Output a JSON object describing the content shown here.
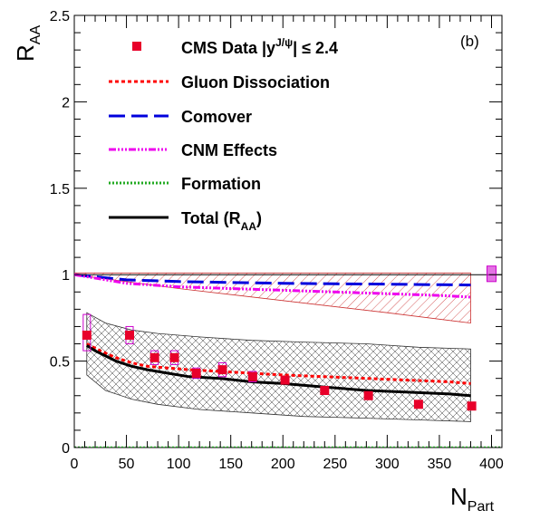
{
  "colors": {
    "data": "#e8002a",
    "gluon": "#ff0000",
    "comover": "#0000dd",
    "cnm": "#ee00ee",
    "formation": "#22aa22",
    "total": "#000000",
    "syst_box": "#cc00cc",
    "band_red": "#cc3333",
    "band_black": "#333333"
  },
  "panel_label": "(b)",
  "axes": {
    "ylabel_main": "R",
    "ylabel_sub": "AA",
    "xlabel_main": "N",
    "xlabel_sub": "Part"
  },
  "legend": {
    "data_prefix": "CMS Data |y",
    "data_sup": "J/ψ",
    "data_suffix": "| ≤ 2.4",
    "gluon": "Gluon Dissociation",
    "comover": "Comover",
    "cnm": "CNM Effects",
    "formation": "Formation",
    "total_prefix": "Total (R",
    "total_sub": "AA",
    "total_suffix": ")"
  },
  "chart_data": {
    "type": "scatter",
    "xlim": [
      0,
      410
    ],
    "ylim": [
      0,
      2.5
    ],
    "x_ticks": [
      0,
      50,
      100,
      150,
      200,
      250,
      300,
      350,
      400
    ],
    "y_ticks": [
      0,
      0.5,
      1,
      1.5,
      2,
      2.5
    ],
    "x_tick_labels": [
      "0",
      "50",
      "100",
      "150",
      "200",
      "250",
      "300",
      "350",
      "400"
    ],
    "y_tick_labels": [
      "0",
      "0.5",
      "1",
      "1.5",
      "2",
      "2.5"
    ],
    "reference_line": 1,
    "data_points": [
      {
        "x": 12,
        "y": 0.65,
        "box_lo": 0.56,
        "box_hi": 0.77
      },
      {
        "x": 53,
        "y": 0.65,
        "box_lo": 0.6,
        "box_hi": 0.7
      },
      {
        "x": 77,
        "y": 0.52,
        "box_lo": 0.48,
        "box_hi": 0.56
      },
      {
        "x": 96,
        "y": 0.52,
        "box_lo": 0.48,
        "box_hi": 0.56
      },
      {
        "x": 117,
        "y": 0.43,
        "box_lo": 0.4,
        "box_hi": 0.46
      },
      {
        "x": 142,
        "y": 0.45,
        "box_lo": 0.41,
        "box_hi": 0.49
      },
      {
        "x": 171,
        "y": 0.41,
        "box_lo": 0.38,
        "box_hi": 0.44
      },
      {
        "x": 202,
        "y": 0.39,
        "box_lo": 0.37,
        "box_hi": 0.41
      },
      {
        "x": 240,
        "y": 0.33,
        "box_lo": 0.31,
        "box_hi": 0.35
      },
      {
        "x": 282,
        "y": 0.3,
        "box_lo": 0.28,
        "box_hi": 0.32
      },
      {
        "x": 330,
        "y": 0.25,
        "box_lo": 0.23,
        "box_hi": 0.26
      },
      {
        "x": 381,
        "y": 0.24,
        "box_lo": 0.22,
        "box_hi": 0.25
      }
    ],
    "global_box": {
      "x": 400,
      "lo": 0.96,
      "hi": 1.05
    },
    "series": [
      {
        "name": "Gluon Dissociation",
        "style": "gluon",
        "x": [
          12,
          25,
          40,
          55,
          70,
          90,
          110,
          140,
          170,
          200,
          240,
          280,
          320,
          360,
          380
        ],
        "y": [
          0.6,
          0.56,
          0.52,
          0.49,
          0.47,
          0.46,
          0.45,
          0.44,
          0.43,
          0.42,
          0.41,
          0.4,
          0.39,
          0.38,
          0.37
        ]
      },
      {
        "name": "Comover",
        "style": "comover",
        "x": [
          0,
          50,
          100,
          150,
          200,
          250,
          300,
          350,
          380
        ],
        "y": [
          1.0,
          0.97,
          0.96,
          0.955,
          0.95,
          0.947,
          0.945,
          0.942,
          0.94
        ]
      },
      {
        "name": "CNM Effects",
        "style": "cnm",
        "x": [
          0,
          50,
          100,
          150,
          200,
          250,
          300,
          350,
          380
        ],
        "y": [
          1.0,
          0.95,
          0.93,
          0.92,
          0.91,
          0.9,
          0.89,
          0.88,
          0.87
        ]
      },
      {
        "name": "Formation",
        "style": "formation",
        "x": [
          0,
          100,
          200,
          300,
          400,
          410
        ],
        "y": [
          0,
          0,
          0,
          0,
          0,
          0
        ]
      },
      {
        "name": "Total (RAA)",
        "style": "total",
        "x": [
          12,
          20,
          30,
          40,
          55,
          70,
          90,
          110,
          140,
          170,
          200,
          240,
          280,
          320,
          360,
          380
        ],
        "y": [
          0.59,
          0.56,
          0.53,
          0.5,
          0.47,
          0.45,
          0.43,
          0.41,
          0.4,
          0.38,
          0.37,
          0.35,
          0.33,
          0.32,
          0.31,
          0.3
        ]
      }
    ],
    "bands": [
      {
        "style": "band_red",
        "x": [
          0,
          100,
          200,
          300,
          380
        ],
        "lo": [
          1.0,
          0.92,
          0.85,
          0.78,
          0.72
        ],
        "hi": [
          1.01,
          1.01,
          1.01,
          1.01,
          1.01
        ]
      },
      {
        "style": "band_black",
        "x": [
          12,
          30,
          55,
          80,
          120,
          170,
          220,
          280,
          330,
          380
        ],
        "lo": [
          0.42,
          0.33,
          0.28,
          0.25,
          0.22,
          0.2,
          0.18,
          0.17,
          0.16,
          0.15
        ],
        "hi": [
          0.78,
          0.72,
          0.68,
          0.66,
          0.64,
          0.62,
          0.61,
          0.6,
          0.58,
          0.57
        ]
      }
    ]
  }
}
